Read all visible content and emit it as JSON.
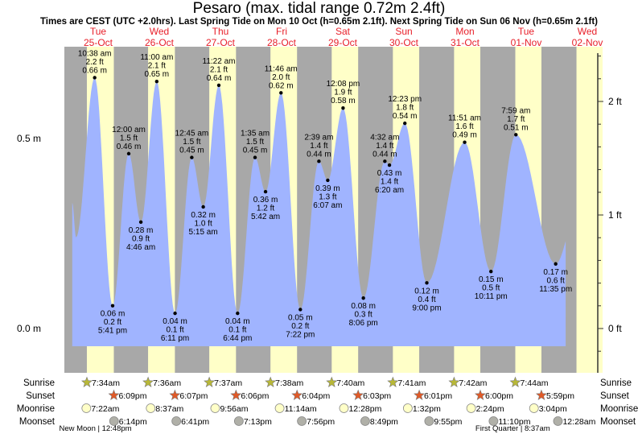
{
  "title": "Pesaro (max. tidal range 0.72m 2.4ft)",
  "subtitle": "Times are CEST (UTC +2.0hrs). Last Spring Tide on Mon 10 Oct (h=0.65m 2.1ft). Next Spring Tide on Sun 06 Nov (h=0.65m 2.1ft)",
  "colors": {
    "water": "#a0b4ff",
    "day": "#ffffc8",
    "night": "#a8a8a8",
    "date": "#e8202a",
    "sunrise": "#b8b838",
    "sunset": "#e05a28",
    "moonrise": "#ffffc8",
    "moonset": "#b0b0a8"
  },
  "chart_data": {
    "type": "area",
    "title": "Pesaro (max. tidal range 0.72m 2.4ft)",
    "ylabel_left": "m",
    "ylabel_right": "ft",
    "ylim_m": [
      -0.05,
      0.75
    ],
    "left_ticks": [
      {
        "value": 0.5,
        "label": "0.5 m"
      },
      {
        "value": 0.0,
        "label": "0.0 m"
      }
    ],
    "right_ticks": [
      {
        "value": 0,
        "label": "0 ft"
      },
      {
        "value": 1,
        "label": "1 ft"
      },
      {
        "value": 2,
        "label": "2 ft"
      }
    ],
    "days": [
      {
        "dow": "Tue",
        "date": "25-Oct"
      },
      {
        "dow": "Wed",
        "date": "26-Oct"
      },
      {
        "dow": "Thu",
        "date": "27-Oct"
      },
      {
        "dow": "Fri",
        "date": "28-Oct"
      },
      {
        "dow": "Sat",
        "date": "29-Oct"
      },
      {
        "dow": "Sun",
        "date": "30-Oct"
      },
      {
        "dow": "Mon",
        "date": "31-Oct"
      },
      {
        "dow": "Tue",
        "date": "01-Nov"
      },
      {
        "dow": "Wed",
        "date": "02-Nov"
      }
    ],
    "curve_start": {
      "day": 0,
      "time": "01:50",
      "m": 0.33
    },
    "curve_extra": [
      {
        "day": 0,
        "time": "03:20",
        "m": 0.24
      }
    ],
    "curve_end": {
      "day": 8,
      "time": "03:30",
      "m": 0.23
    },
    "tides": [
      {
        "day": 0,
        "type": "high",
        "time": "10:38 am",
        "ft": "2.2 ft",
        "m": 0.66,
        "m_label": "0.66 m"
      },
      {
        "day": 0,
        "type": "low",
        "time": "5:41 pm",
        "ft": "0.2 ft",
        "m": 0.06,
        "m_label": "0.06 m"
      },
      {
        "day": 1,
        "type": "high",
        "time": "12:00 am",
        "ft": "1.5 ft",
        "m": 0.46,
        "m_label": "0.46 m"
      },
      {
        "day": 1,
        "type": "low",
        "time": "4:46 am",
        "ft": "0.9 ft",
        "m": 0.28,
        "m_label": "0.28 m"
      },
      {
        "day": 1,
        "type": "high",
        "time": "11:00 am",
        "ft": "2.1 ft",
        "m": 0.65,
        "m_label": "0.65 m"
      },
      {
        "day": 1,
        "type": "low",
        "time": "6:11 pm",
        "ft": "0.1 ft",
        "m": 0.04,
        "m_label": "0.04 m"
      },
      {
        "day": 2,
        "type": "high",
        "time": "12:45 am",
        "ft": "1.5 ft",
        "m": 0.45,
        "m_label": "0.45 m"
      },
      {
        "day": 2,
        "type": "low",
        "time": "5:15 am",
        "ft": "1.0 ft",
        "m": 0.32,
        "m_label": "0.32 m"
      },
      {
        "day": 2,
        "type": "high",
        "time": "11:22 am",
        "ft": "2.1 ft",
        "m": 0.64,
        "m_label": "0.64 m"
      },
      {
        "day": 2,
        "type": "low",
        "time": "6:44 pm",
        "ft": "0.1 ft",
        "m": 0.04,
        "m_label": "0.04 m"
      },
      {
        "day": 3,
        "type": "high",
        "time": "1:35 am",
        "ft": "1.5 ft",
        "m": 0.45,
        "m_label": "0.45 m"
      },
      {
        "day": 3,
        "type": "low",
        "time": "5:42 am",
        "ft": "1.2 ft",
        "m": 0.36,
        "m_label": "0.36 m"
      },
      {
        "day": 3,
        "type": "high",
        "time": "11:46 am",
        "ft": "2.0 ft",
        "m": 0.62,
        "m_label": "0.62 m"
      },
      {
        "day": 3,
        "type": "low",
        "time": "7:22 pm",
        "ft": "0.2 ft",
        "m": 0.05,
        "m_label": "0.05 m"
      },
      {
        "day": 4,
        "type": "high",
        "time": "2:39 am",
        "ft": "1.4 ft",
        "m": 0.44,
        "m_label": "0.44 m"
      },
      {
        "day": 4,
        "type": "low",
        "time": "6:07 am",
        "ft": "1.3 ft",
        "m": 0.39,
        "m_label": "0.39 m"
      },
      {
        "day": 4,
        "type": "high",
        "time": "12:08 pm",
        "ft": "1.9 ft",
        "m": 0.58,
        "m_label": "0.58 m"
      },
      {
        "day": 4,
        "type": "low",
        "time": "8:06 pm",
        "ft": "0.3 ft",
        "m": 0.08,
        "m_label": "0.08 m"
      },
      {
        "day": 5,
        "type": "high",
        "time": "4:32 am",
        "ft": "1.4 ft",
        "m": 0.44,
        "m_label": "0.44 m"
      },
      {
        "day": 5,
        "type": "low",
        "time": "6:20 am",
        "ft": "1.4 ft",
        "m": 0.43,
        "m_label": "0.43 m"
      },
      {
        "day": 5,
        "type": "high",
        "time": "12:23 pm",
        "ft": "1.8 ft",
        "m": 0.54,
        "m_label": "0.54 m"
      },
      {
        "day": 5,
        "type": "low",
        "time": "9:00 pm",
        "ft": "0.4 ft",
        "m": 0.12,
        "m_label": "0.12 m"
      },
      {
        "day": 6,
        "type": "high",
        "time": "11:51 am",
        "ft": "1.6 ft",
        "m": 0.49,
        "m_label": "0.49 m"
      },
      {
        "day": 6,
        "type": "low",
        "time": "10:11 pm",
        "ft": "0.5 ft",
        "m": 0.15,
        "m_label": "0.15 m"
      },
      {
        "day": 7,
        "type": "high",
        "time": "7:59 am",
        "ft": "1.7 ft",
        "m": 0.51,
        "m_label": "0.51 m"
      },
      {
        "day": 7,
        "type": "low",
        "time": "11:35 pm",
        "ft": "0.6 ft",
        "m": 0.17,
        "m_label": "0.17 m"
      }
    ],
    "rows": {
      "labels": {
        "sunrise": "Sunrise",
        "sunset": "Sunset",
        "moonrise": "Moonrise",
        "moonset": "Moonset"
      },
      "sunrise": [
        {
          "day": 0,
          "t": "7:34am"
        },
        {
          "day": 1,
          "t": "7:36am"
        },
        {
          "day": 2,
          "t": "7:37am"
        },
        {
          "day": 3,
          "t": "7:38am"
        },
        {
          "day": 4,
          "t": "7:40am"
        },
        {
          "day": 5,
          "t": "7:41am"
        },
        {
          "day": 6,
          "t": "7:42am"
        },
        {
          "day": 7,
          "t": "7:44am"
        }
      ],
      "sunset": [
        {
          "day": 0,
          "t": "6:09pm"
        },
        {
          "day": 1,
          "t": "6:07pm"
        },
        {
          "day": 2,
          "t": "6:06pm"
        },
        {
          "day": 3,
          "t": "6:04pm"
        },
        {
          "day": 4,
          "t": "6:03pm"
        },
        {
          "day": 5,
          "t": "6:01pm"
        },
        {
          "day": 6,
          "t": "6:00pm"
        },
        {
          "day": 7,
          "t": "5:59pm"
        }
      ],
      "moonrise": [
        {
          "day": 0,
          "t": "7:22am"
        },
        {
          "day": 1,
          "t": "8:37am"
        },
        {
          "day": 2,
          "t": "9:56am"
        },
        {
          "day": 3,
          "t": "11:14am"
        },
        {
          "day": 4,
          "t": "12:28pm"
        },
        {
          "day": 5,
          "t": "1:32pm"
        },
        {
          "day": 6,
          "t": "2:24pm"
        },
        {
          "day": 7,
          "t": "3:04pm"
        }
      ],
      "moonset": [
        {
          "day": 0,
          "t": "6:14pm"
        },
        {
          "day": 1,
          "t": "6:41pm"
        },
        {
          "day": 2,
          "t": "7:13pm"
        },
        {
          "day": 3,
          "t": "7:56pm"
        },
        {
          "day": 4,
          "t": "8:49pm"
        },
        {
          "day": 5,
          "t": "9:55pm"
        },
        {
          "day": 6,
          "t": "11:10pm"
        },
        {
          "day": 8,
          "t": "12:28am"
        }
      ]
    },
    "moon_phases": [
      {
        "day": 0,
        "t": "12:48pm",
        "label": "New Moon | 12:48pm"
      },
      {
        "day": 7,
        "t": "8:37am",
        "label": "First Quarter | 8:37am"
      }
    ]
  }
}
